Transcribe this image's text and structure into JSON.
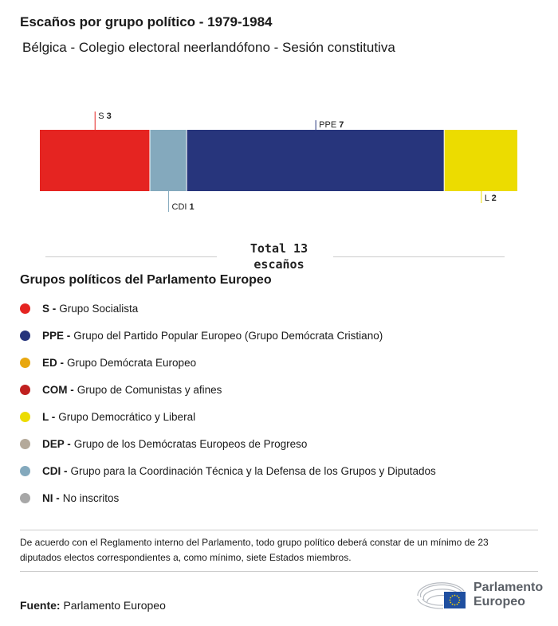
{
  "title": "Escaños por grupo político - 1979-1984",
  "subtitle": "Bélgica - Colegio electoral neerlandófono - Sesión constitutiva",
  "chart_data": {
    "type": "bar",
    "orientation": "horizontal-stacked",
    "categories": [
      "S",
      "CDI",
      "PPE",
      "L"
    ],
    "values": [
      3,
      1,
      7,
      2
    ],
    "colors": [
      "#e52421",
      "#84a9bd",
      "#27357c",
      "#ecdc00"
    ],
    "total": 13
  },
  "total_label": "Total 13",
  "total_unit": "escaños",
  "legend_title": "Grupos políticos del Parlamento Europeo",
  "legend": [
    {
      "abbr": "S -",
      "name": "Grupo Socialista",
      "color": "#e52421"
    },
    {
      "abbr": "PPE -",
      "name": "Grupo del Partido Popular Europeo (Grupo Demócrata Cristiano)",
      "color": "#27357c"
    },
    {
      "abbr": "ED -",
      "name": "Grupo Demócrata Europeo",
      "color": "#e8a70f"
    },
    {
      "abbr": "COM -",
      "name": "Grupo de Comunistas y afines",
      "color": "#c0201f"
    },
    {
      "abbr": "L -",
      "name": "Grupo Democrático y Liberal",
      "color": "#ecdc00"
    },
    {
      "abbr": "DEP -",
      "name": "Grupo de los Demócratas Europeos de Progreso",
      "color": "#b4a99a"
    },
    {
      "abbr": "CDI -",
      "name": "Grupo para la Coordinación Técnica y la Defensa de los Grupos y Diputados",
      "color": "#84a9bd"
    },
    {
      "abbr": "NI -",
      "name": "No inscritos",
      "color": "#a7a7a7"
    }
  ],
  "note": "De acuerdo con el Reglamento interno del Parlamento, todo grupo político deberá constar de un mínimo de 23 diputados electos correspondientes a, como mínimo, siete Estados miembros.",
  "source_label": "Fuente:",
  "source": "Parlamento Europeo",
  "logo_text": [
    "Parlamento",
    "Europeo"
  ]
}
